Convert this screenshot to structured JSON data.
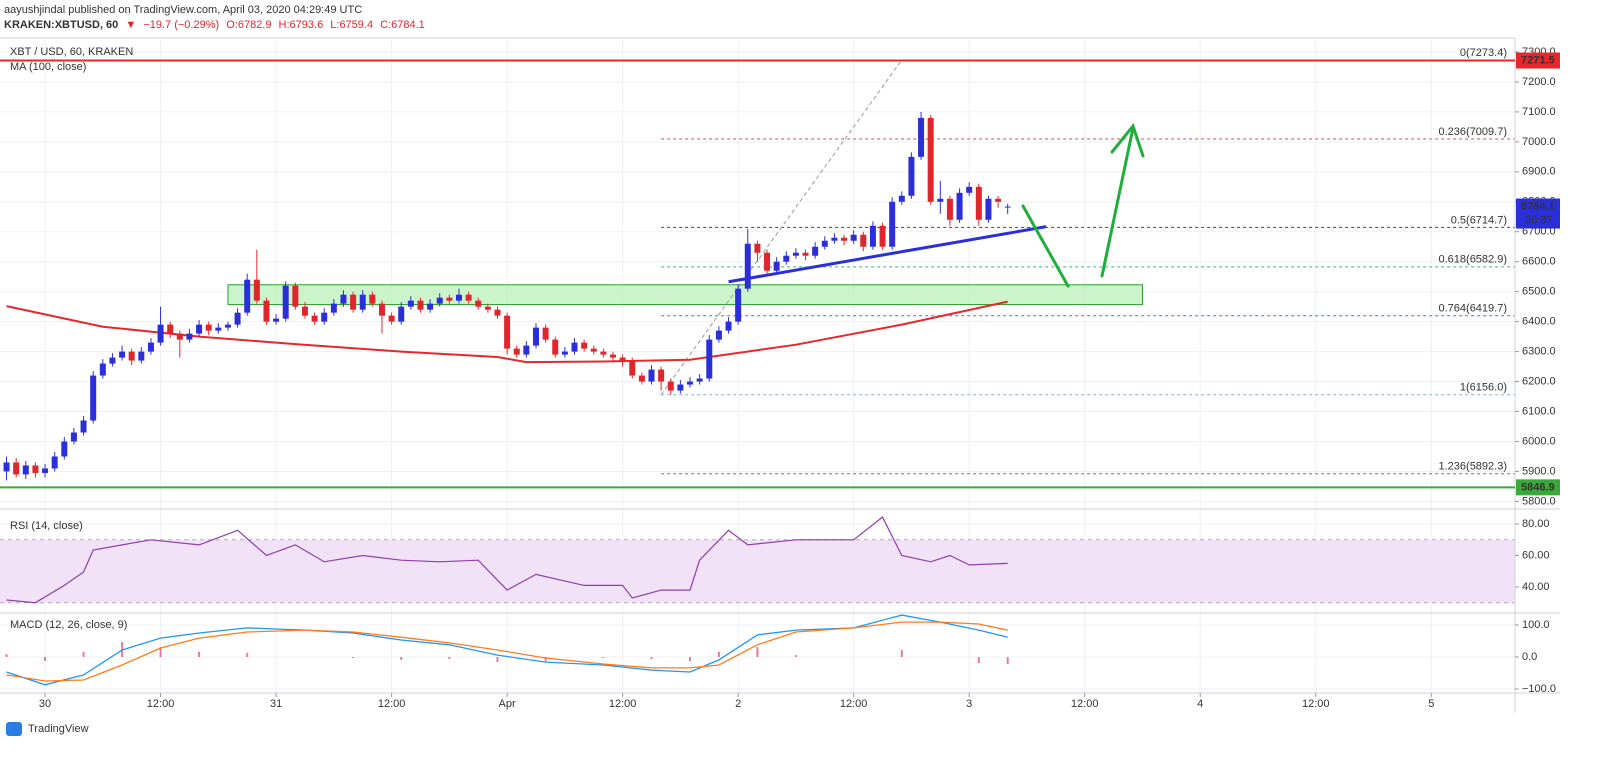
{
  "header": {
    "publisher": "aayushjindal published on TradingView.com, April 03, 2020 04:29:49 UTC",
    "symbol": "KRAKEN:XBTUSD, 60",
    "arrow": "▼",
    "change": "−19.7 (−0.29%)",
    "open": "O:6782.9",
    "high": "H:6793.6",
    "low": "L:6759.4",
    "close": "C:6784.1"
  },
  "chart_data": {
    "type": "candlestick",
    "title": "XBT / USD, 60, KRAKEN",
    "grid": true,
    "up_color": "#2b2fd9",
    "down_color": "#e0262d",
    "xlim": [
      -4.68,
      152.7
    ],
    "xticks": [
      {
        "value": 0,
        "label": "30"
      },
      {
        "value": 12,
        "label": "12:00"
      },
      {
        "value": 24,
        "label": "31"
      },
      {
        "value": 36,
        "label": "12:00"
      },
      {
        "value": 48,
        "label": "Apr"
      },
      {
        "value": 60,
        "label": "12:00"
      },
      {
        "value": 72,
        "label": "2"
      },
      {
        "value": 84,
        "label": "12:00"
      },
      {
        "value": 96,
        "label": "3"
      },
      {
        "value": 108,
        "label": "12:00"
      },
      {
        "value": 120,
        "label": "4"
      },
      {
        "value": 132,
        "label": "12:00"
      },
      {
        "value": 144,
        "label": "5"
      }
    ],
    "ylim": [
      5778,
      7340
    ],
    "yticks": [
      {
        "value": 5800,
        "label": "5800.0"
      },
      {
        "value": 5900,
        "label": "5900.0"
      },
      {
        "value": 6000,
        "label": "6000.0"
      },
      {
        "value": 6100,
        "label": "6100.0"
      },
      {
        "value": 6200,
        "label": "6200.0"
      },
      {
        "value": 6300,
        "label": "6300.0"
      },
      {
        "value": 6400,
        "label": "6400.0"
      },
      {
        "value": 6500,
        "label": "6500.0"
      },
      {
        "value": 6600,
        "label": "6600.0"
      },
      {
        "value": 6700,
        "label": "6700.0"
      },
      {
        "value": 6800,
        "label": "6800.0"
      },
      {
        "value": 6900,
        "label": "6900.0"
      },
      {
        "value": 7000,
        "label": "7000.0"
      },
      {
        "value": 7100,
        "label": "7100.0"
      },
      {
        "value": 7200,
        "label": "7200.0"
      },
      {
        "value": 7300,
        "label": "7300.0"
      }
    ],
    "x": [
      -4,
      -3,
      -2,
      -1,
      0,
      1,
      2,
      3,
      4,
      5,
      6,
      7,
      8,
      9,
      10,
      11,
      12,
      13,
      14,
      15,
      16,
      17,
      18,
      19,
      20,
      21,
      22,
      23,
      24,
      25,
      26,
      27,
      28,
      29,
      30,
      31,
      32,
      33,
      34,
      35,
      36,
      37,
      38,
      39,
      40,
      41,
      42,
      43,
      44,
      45,
      46,
      47,
      48,
      49,
      50,
      51,
      52,
      53,
      54,
      55,
      56,
      57,
      58,
      59,
      60,
      61,
      62,
      63,
      64,
      65,
      66,
      67,
      68,
      69,
      70,
      71,
      72,
      73,
      74,
      75,
      76,
      77,
      78,
      79,
      80,
      81,
      82,
      83,
      84,
      85,
      86,
      87,
      88,
      89,
      90,
      91,
      92,
      93,
      94,
      95,
      96,
      97,
      98,
      99,
      100
    ],
    "candles": [
      [
        5900,
        5950,
        5870,
        5930
      ],
      [
        5930,
        5945,
        5880,
        5890
      ],
      [
        5890,
        5935,
        5875,
        5920
      ],
      [
        5920,
        5930,
        5880,
        5895
      ],
      [
        5895,
        5925,
        5880,
        5910
      ],
      [
        5910,
        5965,
        5900,
        5950
      ],
      [
        5950,
        6015,
        5940,
        6000
      ],
      [
        6000,
        6045,
        5990,
        6030
      ],
      [
        6030,
        6085,
        6020,
        6070
      ],
      [
        6070,
        6235,
        6060,
        6220
      ],
      [
        6220,
        6275,
        6210,
        6260
      ],
      [
        6260,
        6295,
        6250,
        6280
      ],
      [
        6280,
        6320,
        6270,
        6300
      ],
      [
        6300,
        6310,
        6255,
        6270
      ],
      [
        6270,
        6315,
        6260,
        6300
      ],
      [
        6300,
        6345,
        6290,
        6330
      ],
      [
        6330,
        6450,
        6320,
        6390
      ],
      [
        6390,
        6400,
        6345,
        6360
      ],
      [
        6360,
        6370,
        6280,
        6340
      ],
      [
        6340,
        6375,
        6330,
        6360
      ],
      [
        6360,
        6405,
        6350,
        6390
      ],
      [
        6390,
        6400,
        6355,
        6370
      ],
      [
        6370,
        6395,
        6360,
        6380
      ],
      [
        6380,
        6400,
        6370,
        6390
      ],
      [
        6390,
        6445,
        6380,
        6430
      ],
      [
        6430,
        6560,
        6420,
        6540
      ],
      [
        6540,
        6640,
        6460,
        6470
      ],
      [
        6470,
        6480,
        6390,
        6400
      ],
      [
        6400,
        6425,
        6390,
        6410
      ],
      [
        6410,
        6535,
        6400,
        6520
      ],
      [
        6520,
        6530,
        6440,
        6450
      ],
      [
        6450,
        6465,
        6410,
        6420
      ],
      [
        6420,
        6430,
        6390,
        6400
      ],
      [
        6400,
        6445,
        6390,
        6430
      ],
      [
        6430,
        6475,
        6420,
        6460
      ],
      [
        6460,
        6505,
        6450,
        6490
      ],
      [
        6490,
        6500,
        6430,
        6440
      ],
      [
        6440,
        6505,
        6430,
        6490
      ],
      [
        6490,
        6500,
        6450,
        6460
      ],
      [
        6460,
        6470,
        6360,
        6420
      ],
      [
        6420,
        6430,
        6390,
        6400
      ],
      [
        6400,
        6465,
        6390,
        6450
      ],
      [
        6450,
        6485,
        6440,
        6470
      ],
      [
        6470,
        6480,
        6430,
        6440
      ],
      [
        6440,
        6475,
        6430,
        6460
      ],
      [
        6460,
        6495,
        6450,
        6480
      ],
      [
        6480,
        6490,
        6460,
        6470
      ],
      [
        6470,
        6510,
        6460,
        6490
      ],
      [
        6490,
        6500,
        6460,
        6470
      ],
      [
        6470,
        6480,
        6440,
        6450
      ],
      [
        6450,
        6460,
        6430,
        6440
      ],
      [
        6440,
        6450,
        6410,
        6420
      ],
      [
        6420,
        6430,
        6290,
        6310
      ],
      [
        6310,
        6320,
        6280,
        6290
      ],
      [
        6290,
        6335,
        6280,
        6320
      ],
      [
        6320,
        6395,
        6310,
        6380
      ],
      [
        6380,
        6390,
        6330,
        6340
      ],
      [
        6340,
        6350,
        6280,
        6290
      ],
      [
        6290,
        6315,
        6280,
        6300
      ],
      [
        6300,
        6345,
        6290,
        6330
      ],
      [
        6330,
        6340,
        6300,
        6310
      ],
      [
        6310,
        6320,
        6290,
        6300
      ],
      [
        6300,
        6310,
        6280,
        6290
      ],
      [
        6290,
        6300,
        6270,
        6280
      ],
      [
        6280,
        6290,
        6250,
        6270
      ],
      [
        6270,
        6280,
        6210,
        6220
      ],
      [
        6220,
        6230,
        6190,
        6200
      ],
      [
        6200,
        6255,
        6190,
        6240
      ],
      [
        6240,
        6250,
        6170,
        6200
      ],
      [
        6200,
        6210,
        6156,
        6170
      ],
      [
        6170,
        6205,
        6160,
        6190
      ],
      [
        6190,
        6215,
        6180,
        6200
      ],
      [
        6200,
        6225,
        6190,
        6210
      ],
      [
        6210,
        6355,
        6200,
        6340
      ],
      [
        6340,
        6385,
        6330,
        6370
      ],
      [
        6370,
        6415,
        6360,
        6400
      ],
      [
        6400,
        6525,
        6390,
        6510
      ],
      [
        6510,
        6710,
        6500,
        6660
      ],
      [
        6660,
        6670,
        6600,
        6630
      ],
      [
        6630,
        6640,
        6560,
        6570
      ],
      [
        6570,
        6615,
        6560,
        6600
      ],
      [
        6600,
        6635,
        6590,
        6620
      ],
      [
        6620,
        6645,
        6610,
        6630
      ],
      [
        6630,
        6640,
        6605,
        6620
      ],
      [
        6620,
        6665,
        6610,
        6650
      ],
      [
        6650,
        6685,
        6640,
        6670
      ],
      [
        6670,
        6695,
        6660,
        6680
      ],
      [
        6680,
        6690,
        6655,
        6670
      ],
      [
        6670,
        6705,
        6660,
        6690
      ],
      [
        6690,
        6700,
        6635,
        6650
      ],
      [
        6650,
        6735,
        6640,
        6720
      ],
      [
        6720,
        6730,
        6640,
        6650
      ],
      [
        6650,
        6815,
        6640,
        6800
      ],
      [
        6800,
        6835,
        6790,
        6820
      ],
      [
        6820,
        6965,
        6810,
        6950
      ],
      [
        6950,
        7100,
        6940,
        7080
      ],
      [
        7080,
        7090,
        6790,
        6800
      ],
      [
        6800,
        6870,
        6760,
        6810
      ],
      [
        6810,
        6820,
        6720,
        6740
      ],
      [
        6740,
        6845,
        6730,
        6830
      ],
      [
        6830,
        6865,
        6820,
        6850
      ],
      [
        6850,
        6860,
        6720,
        6740
      ],
      [
        6740,
        6820,
        6730,
        6810
      ],
      [
        6810,
        6820,
        6780,
        6800
      ],
      [
        6782.9,
        6793.6,
        6759.4,
        6784.1
      ]
    ],
    "ma": {
      "name": "MA (100, close)",
      "color": "#e8262b",
      "x": [
        -4,
        6,
        16,
        26,
        37,
        47,
        50,
        58,
        67,
        78,
        89,
        100
      ],
      "values": [
        6452,
        6383,
        6350,
        6325,
        6300,
        6282,
        6265,
        6267,
        6273,
        6323,
        6390,
        6467
      ]
    },
    "horizontal_lines": [
      {
        "value": 7271.5,
        "color": "#e8262b"
      },
      {
        "value": 5846.9,
        "color": "#3aa83a"
      }
    ],
    "last_price": 6784.1,
    "countdown": "30:37",
    "last_price_color": "#2b2fd9",
    "zone": {
      "x": [
        19,
        114
      ],
      "y": [
        6457,
        6523
      ],
      "color": "#b9f0b9"
    },
    "trendline": {
      "x": [
        71,
        104
      ],
      "y": [
        6533,
        6717
      ],
      "color": "#2b2fd9"
    },
    "fibonacci": {
      "anchors_x": [
        64,
        89
      ],
      "levels": [
        {
          "value": 7273.4,
          "label": "0(7273.4)",
          "color": "#888888"
        },
        {
          "value": 7009.7,
          "label": "0.236(7009.7)",
          "color": "#e0474c"
        },
        {
          "value": 6714.7,
          "label": "0.5(6714.7)",
          "color": "#444444"
        },
        {
          "value": 6582.9,
          "label": "0.618(6582.9)",
          "color": "#3fb07a"
        },
        {
          "value": 6419.7,
          "label": "0.764(6419.7)",
          "color": "#3f7fbf"
        },
        {
          "value": 6156.0,
          "label": "1(6156.0)",
          "color": "#7fb3e0"
        },
        {
          "value": 5892.3,
          "label": "1.236(5892.3)",
          "color": "#a04fc0"
        }
      ]
    },
    "rsi": {
      "type": "line",
      "title": "RSI (14, close)",
      "color": "#8e3fa8",
      "band_color": "#f1e2f8",
      "bands": [
        30,
        70
      ],
      "ylim": [
        24.1,
        88.9
      ],
      "yticks": [
        {
          "value": 40,
          "label": "40.00"
        },
        {
          "value": 60,
          "label": "60.00"
        },
        {
          "value": 80,
          "label": "80.00"
        }
      ],
      "x": [
        -4,
        -1,
        2,
        4,
        5,
        8,
        11,
        16,
        20,
        23,
        26,
        29,
        33,
        37,
        41,
        45,
        48,
        51,
        56,
        60,
        61,
        64,
        67,
        68,
        71,
        73,
        78,
        84,
        87,
        89,
        92,
        94,
        96,
        100
      ],
      "values": [
        31.7,
        30,
        41,
        49.5,
        63.5,
        66.7,
        70,
        66.7,
        76,
        60,
        66.7,
        56,
        60,
        57,
        56,
        57,
        38,
        48,
        41,
        41,
        33,
        38,
        38,
        57,
        76,
        66.7,
        70,
        70,
        84.4,
        60,
        56,
        60,
        54,
        55
      ]
    },
    "macd": {
      "type": "macd",
      "title": "MACD (12, 26, close, 9)",
      "ylim": [
        -109.4,
        134.4
      ],
      "yticks": [
        {
          "value": -100,
          "label": "−100.0"
        },
        {
          "value": 0,
          "label": "0.0"
        },
        {
          "value": 100,
          "label": "100.0"
        }
      ],
      "x": [
        -4,
        0,
        4,
        8,
        12,
        16,
        21,
        27,
        32,
        37,
        42,
        47,
        52,
        58,
        63,
        67,
        70,
        74,
        78,
        84,
        89,
        93,
        97,
        100
      ],
      "series": [
        {
          "color": "#2196f3",
          "values": [
            -47,
            -87,
            -56,
            22,
            59,
            75,
            91,
            84,
            75,
            53,
            38,
            6,
            -16,
            -25,
            -41,
            -47,
            -9,
            69,
            84,
            91,
            131,
            109,
            84,
            62
          ]
        },
        {
          "color": "#ff7a1a",
          "values": [
            -56,
            -75,
            -72,
            -25,
            28,
            59,
            78,
            84,
            78,
            62,
            44,
            22,
            -3,
            -22,
            -34,
            -34,
            -25,
            38,
            78,
            91,
            109,
            109,
            103,
            84
          ]
        }
      ],
      "histogram": {
        "color": "#e0407a",
        "values": [
          9,
          -12,
          16,
          47,
          31,
          16,
          13,
          0,
          -3,
          -9,
          -6,
          -16,
          -13,
          -3,
          -7,
          -13,
          16,
          31,
          6,
          0,
          22,
          0,
          -19,
          -22
        ]
      }
    }
  },
  "footer": {
    "brand": "TradingView"
  }
}
